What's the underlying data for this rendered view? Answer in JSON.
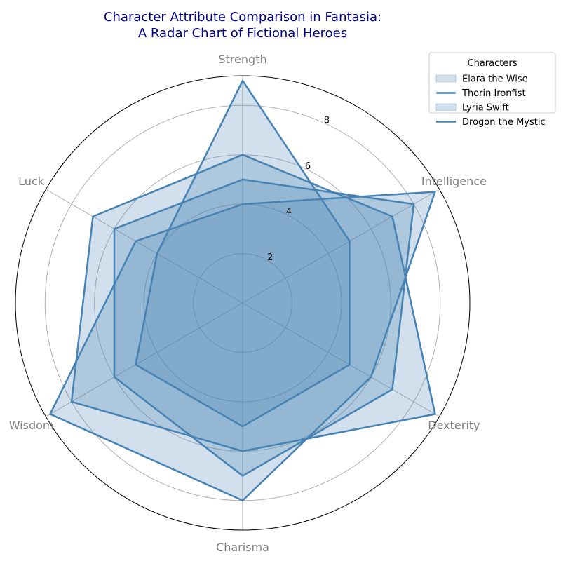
{
  "chart_data": {
    "type": "radar",
    "title_lines": [
      "Character Attribute Comparison in Fantasia:",
      "A Radar Chart of Fictional Heroes"
    ],
    "axes": [
      "Strength",
      "Intelligence",
      "Dexterity",
      "Charisma",
      "Wisdom",
      "Luck"
    ],
    "rlim": [
      0,
      9.2
    ],
    "r_ticks": [
      "2",
      "4",
      "6",
      "8"
    ],
    "grid": true,
    "legend_title": "Characters",
    "legend_placement": "top-right",
    "colors": {
      "line": "#4682b4",
      "fill": "#a7c1dc",
      "title": "#000080",
      "axis_label": "#808080",
      "grid": "#b0b0b0"
    },
    "series": [
      {
        "name": "Elara the Wise",
        "values": [
          5,
          8,
          7,
          7,
          6,
          6
        ]
      },
      {
        "name": "Thorin Ironfist",
        "values": [
          9,
          5,
          5,
          5,
          5,
          4
        ]
      },
      {
        "name": "Lyria Swift",
        "values": [
          6,
          7,
          9,
          6,
          8,
          7
        ]
      },
      {
        "name": "Drogon the Mystic",
        "values": [
          4,
          9,
          6,
          8,
          9,
          5
        ]
      }
    ]
  }
}
